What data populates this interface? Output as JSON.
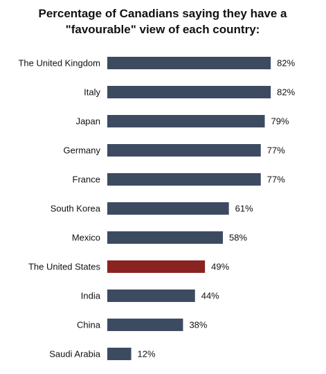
{
  "chart_data": {
    "type": "bar",
    "orientation": "horizontal",
    "title_lines": [
      "Percentage of Canadians saying they have a",
      "\"favourable\" view of each country:"
    ],
    "categories": [
      "The United Kingdom",
      "Italy",
      "Japan",
      "Germany",
      "France",
      "South Korea",
      "Mexico",
      "The United States",
      "India",
      "China",
      "Saudi Arabia"
    ],
    "values": [
      82,
      82,
      79,
      77,
      77,
      61,
      58,
      49,
      44,
      38,
      12
    ],
    "value_labels": [
      "82%",
      "82%",
      "79%",
      "77%",
      "77%",
      "61%",
      "58%",
      "49%",
      "44%",
      "38%",
      "12%"
    ],
    "highlight_index": 7,
    "xlim": [
      0,
      100
    ],
    "grid": false,
    "legend": "none",
    "colors": {
      "bar": "#3d4b61",
      "highlight": "#8b2320"
    }
  }
}
